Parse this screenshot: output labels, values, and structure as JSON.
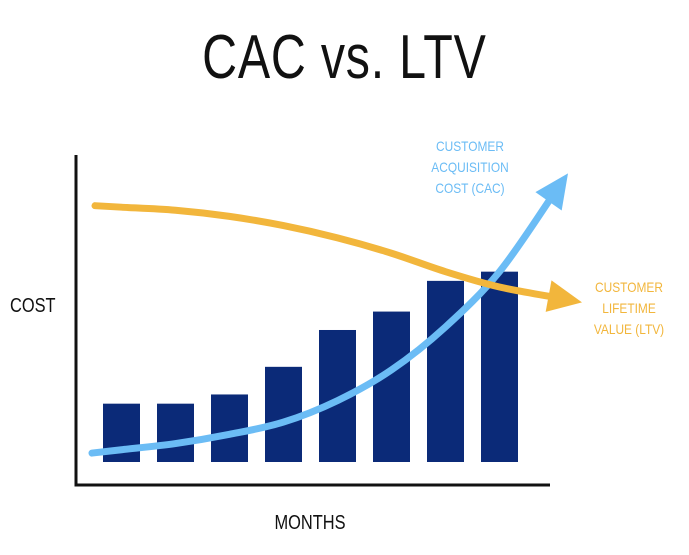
{
  "colors": {
    "bars": "#0b2a78",
    "cac": "#6bbcf5",
    "ltv": "#f2b63c",
    "axis": "#111111"
  },
  "chart_data": {
    "type": "bar",
    "title": "CAC vs. LTV",
    "xlabel": "MONTHS",
    "ylabel": "COST",
    "ylim": [
      0,
      100
    ],
    "grid": false,
    "values": [
      19,
      19,
      22,
      31,
      43,
      49,
      59,
      62
    ],
    "series": [
      {
        "name": "CUSTOMER ACQUISITION COST (CAC)",
        "type": "line",
        "values": [
          4,
          6,
          9,
          13,
          20,
          30,
          44,
          62
        ],
        "arrow_end": 94
      },
      {
        "name": "CUSTOMER LIFETIME VALUE (LTV)",
        "type": "line",
        "values": [
          83,
          82,
          80,
          77,
          73,
          68,
          62,
          57
        ],
        "arrow_end": 52
      }
    ]
  }
}
